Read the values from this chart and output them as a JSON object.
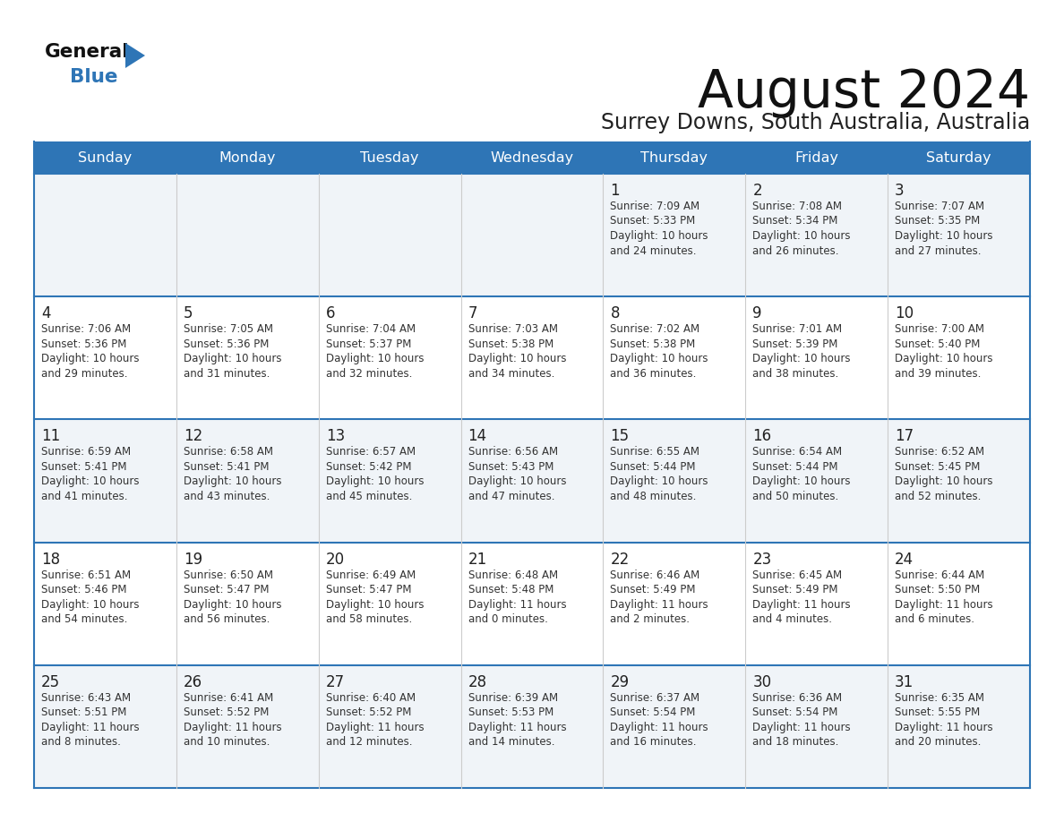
{
  "title": "August 2024",
  "subtitle": "Surrey Downs, South Australia, Australia",
  "header_bg": "#2e75b6",
  "header_text": "#ffffff",
  "row_bg_light": "#f0f4f8",
  "row_bg_white": "#ffffff",
  "cell_border_color": "#2e75b6",
  "cell_text_color": "#333333",
  "day_num_color": "#222222",
  "days_of_week": [
    "Sunday",
    "Monday",
    "Tuesday",
    "Wednesday",
    "Thursday",
    "Friday",
    "Saturday"
  ],
  "weeks": [
    [
      {
        "day": "",
        "sunrise": "",
        "sunset": "",
        "daylight_h": "",
        "daylight_m": ""
      },
      {
        "day": "",
        "sunrise": "",
        "sunset": "",
        "daylight_h": "",
        "daylight_m": ""
      },
      {
        "day": "",
        "sunrise": "",
        "sunset": "",
        "daylight_h": "",
        "daylight_m": ""
      },
      {
        "day": "",
        "sunrise": "",
        "sunset": "",
        "daylight_h": "",
        "daylight_m": ""
      },
      {
        "day": "1",
        "sunrise": "7:09 AM",
        "sunset": "5:33 PM",
        "daylight_h": "10",
        "daylight_m": "24"
      },
      {
        "day": "2",
        "sunrise": "7:08 AM",
        "sunset": "5:34 PM",
        "daylight_h": "10",
        "daylight_m": "26"
      },
      {
        "day": "3",
        "sunrise": "7:07 AM",
        "sunset": "5:35 PM",
        "daylight_h": "10",
        "daylight_m": "27"
      }
    ],
    [
      {
        "day": "4",
        "sunrise": "7:06 AM",
        "sunset": "5:36 PM",
        "daylight_h": "10",
        "daylight_m": "29"
      },
      {
        "day": "5",
        "sunrise": "7:05 AM",
        "sunset": "5:36 PM",
        "daylight_h": "10",
        "daylight_m": "31"
      },
      {
        "day": "6",
        "sunrise": "7:04 AM",
        "sunset": "5:37 PM",
        "daylight_h": "10",
        "daylight_m": "32"
      },
      {
        "day": "7",
        "sunrise": "7:03 AM",
        "sunset": "5:38 PM",
        "daylight_h": "10",
        "daylight_m": "34"
      },
      {
        "day": "8",
        "sunrise": "7:02 AM",
        "sunset": "5:38 PM",
        "daylight_h": "10",
        "daylight_m": "36"
      },
      {
        "day": "9",
        "sunrise": "7:01 AM",
        "sunset": "5:39 PM",
        "daylight_h": "10",
        "daylight_m": "38"
      },
      {
        "day": "10",
        "sunrise": "7:00 AM",
        "sunset": "5:40 PM",
        "daylight_h": "10",
        "daylight_m": "39"
      }
    ],
    [
      {
        "day": "11",
        "sunrise": "6:59 AM",
        "sunset": "5:41 PM",
        "daylight_h": "10",
        "daylight_m": "41"
      },
      {
        "day": "12",
        "sunrise": "6:58 AM",
        "sunset": "5:41 PM",
        "daylight_h": "10",
        "daylight_m": "43"
      },
      {
        "day": "13",
        "sunrise": "6:57 AM",
        "sunset": "5:42 PM",
        "daylight_h": "10",
        "daylight_m": "45"
      },
      {
        "day": "14",
        "sunrise": "6:56 AM",
        "sunset": "5:43 PM",
        "daylight_h": "10",
        "daylight_m": "47"
      },
      {
        "day": "15",
        "sunrise": "6:55 AM",
        "sunset": "5:44 PM",
        "daylight_h": "10",
        "daylight_m": "48"
      },
      {
        "day": "16",
        "sunrise": "6:54 AM",
        "sunset": "5:44 PM",
        "daylight_h": "10",
        "daylight_m": "50"
      },
      {
        "day": "17",
        "sunrise": "6:52 AM",
        "sunset": "5:45 PM",
        "daylight_h": "10",
        "daylight_m": "52"
      }
    ],
    [
      {
        "day": "18",
        "sunrise": "6:51 AM",
        "sunset": "5:46 PM",
        "daylight_h": "10",
        "daylight_m": "54"
      },
      {
        "day": "19",
        "sunrise": "6:50 AM",
        "sunset": "5:47 PM",
        "daylight_h": "10",
        "daylight_m": "56"
      },
      {
        "day": "20",
        "sunrise": "6:49 AM",
        "sunset": "5:47 PM",
        "daylight_h": "10",
        "daylight_m": "58"
      },
      {
        "day": "21",
        "sunrise": "6:48 AM",
        "sunset": "5:48 PM",
        "daylight_h": "11",
        "daylight_m": "0"
      },
      {
        "day": "22",
        "sunrise": "6:46 AM",
        "sunset": "5:49 PM",
        "daylight_h": "11",
        "daylight_m": "2"
      },
      {
        "day": "23",
        "sunrise": "6:45 AM",
        "sunset": "5:49 PM",
        "daylight_h": "11",
        "daylight_m": "4"
      },
      {
        "day": "24",
        "sunrise": "6:44 AM",
        "sunset": "5:50 PM",
        "daylight_h": "11",
        "daylight_m": "6"
      }
    ],
    [
      {
        "day": "25",
        "sunrise": "6:43 AM",
        "sunset": "5:51 PM",
        "daylight_h": "11",
        "daylight_m": "8"
      },
      {
        "day": "26",
        "sunrise": "6:41 AM",
        "sunset": "5:52 PM",
        "daylight_h": "11",
        "daylight_m": "10"
      },
      {
        "day": "27",
        "sunrise": "6:40 AM",
        "sunset": "5:52 PM",
        "daylight_h": "11",
        "daylight_m": "12"
      },
      {
        "day": "28",
        "sunrise": "6:39 AM",
        "sunset": "5:53 PM",
        "daylight_h": "11",
        "daylight_m": "14"
      },
      {
        "day": "29",
        "sunrise": "6:37 AM",
        "sunset": "5:54 PM",
        "daylight_h": "11",
        "daylight_m": "16"
      },
      {
        "day": "30",
        "sunrise": "6:36 AM",
        "sunset": "5:54 PM",
        "daylight_h": "11",
        "daylight_m": "18"
      },
      {
        "day": "31",
        "sunrise": "6:35 AM",
        "sunset": "5:55 PM",
        "daylight_h": "11",
        "daylight_m": "20"
      }
    ]
  ]
}
